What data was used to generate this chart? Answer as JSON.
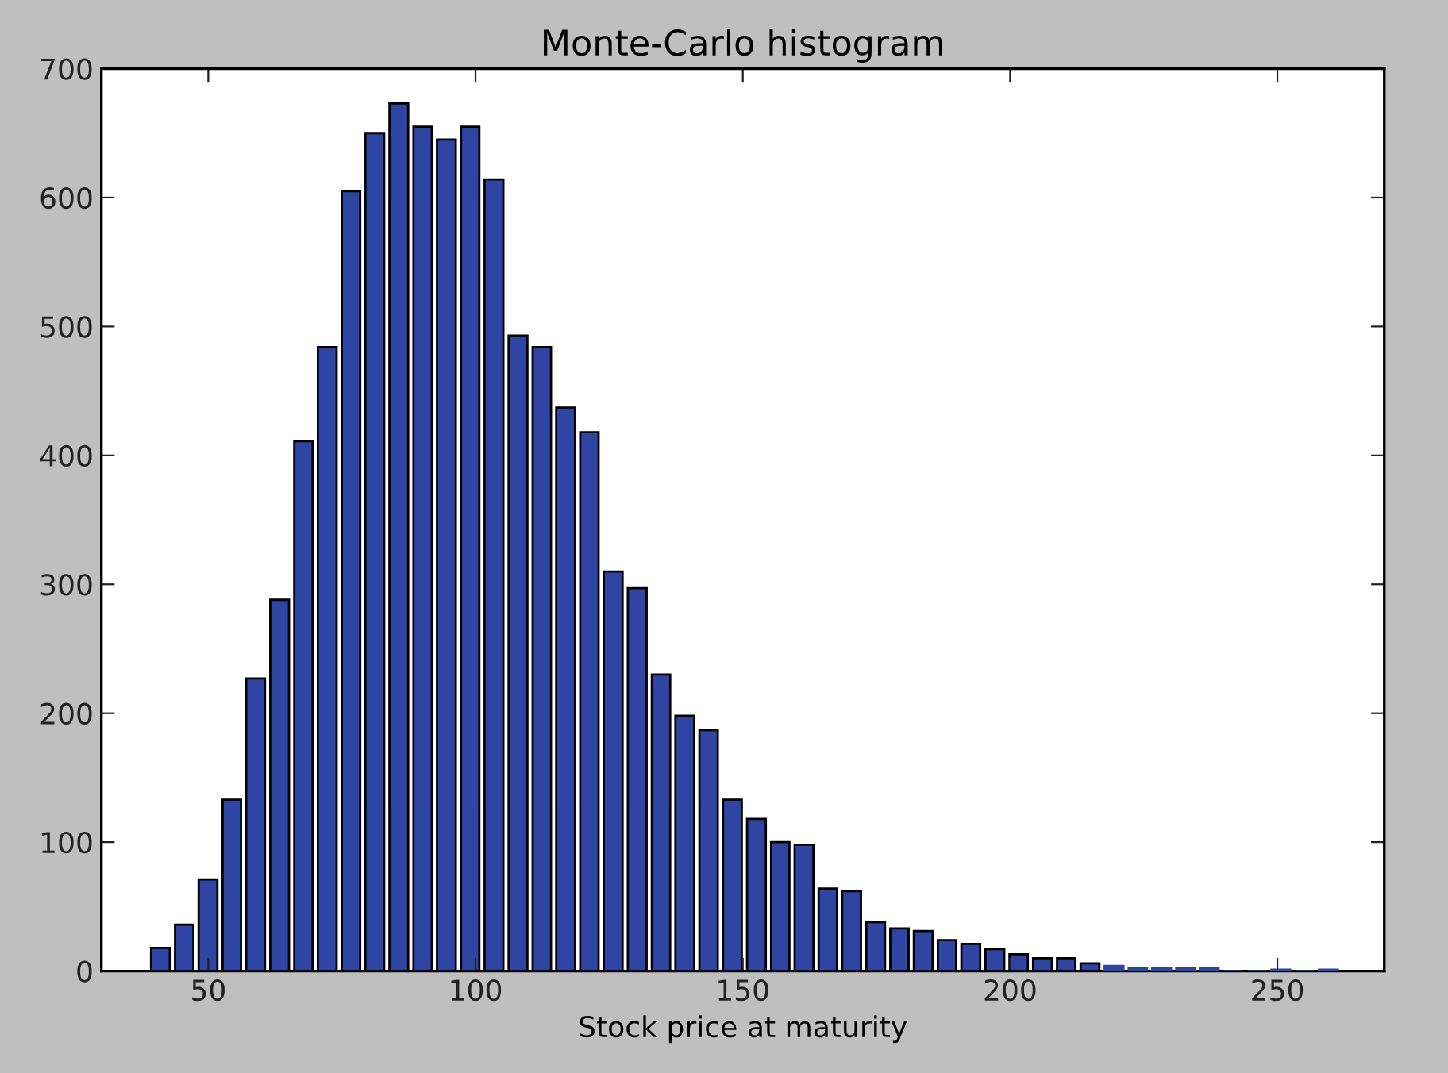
{
  "chart_data": {
    "type": "histogram",
    "title": "Monte-Carlo histogram",
    "xlabel": "Stock price at maturity",
    "bins": [
      38.8,
      43.3,
      47.7,
      52.2,
      56.6,
      61.1,
      65.6,
      70.0,
      74.5,
      78.9,
      83.4,
      87.9,
      92.3,
      96.8,
      101.2,
      105.7,
      110.2,
      114.6,
      119.1,
      123.5,
      128.0,
      132.5,
      136.9,
      141.4,
      145.8,
      150.3,
      154.8,
      159.2,
      163.7,
      168.1,
      172.6,
      177.1,
      181.5,
      186.0,
      190.4,
      194.9,
      199.4,
      203.8,
      208.3,
      212.7,
      217.2,
      221.7,
      226.1,
      230.6,
      235.0,
      239.5,
      244.0,
      248.4,
      252.9,
      257.3,
      261.8
    ],
    "values": [
      18,
      36,
      71,
      133,
      227,
      288,
      411,
      484,
      605,
      650,
      673,
      655,
      645,
      655,
      614,
      493,
      484,
      437,
      418,
      310,
      297,
      230,
      198,
      187,
      133,
      118,
      100,
      98,
      64,
      62,
      38,
      33,
      31,
      24,
      21,
      17,
      13,
      10,
      10,
      6,
      4,
      2,
      2,
      2,
      2,
      0,
      0,
      1,
      0,
      1
    ],
    "color": "#2e45a4",
    "xlim": [
      30,
      270
    ],
    "xticks": [
      50,
      100,
      150,
      200,
      250
    ],
    "ylim": [
      0,
      700
    ],
    "yticks": [
      0,
      100,
      200,
      300,
      400,
      500,
      600,
      700
    ],
    "grid": false
  }
}
